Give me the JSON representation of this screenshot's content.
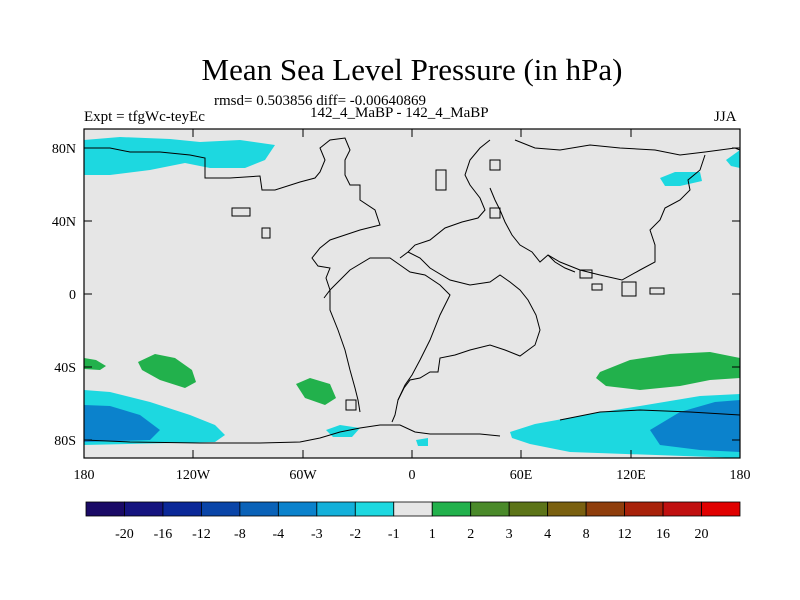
{
  "title": "Mean Sea Level Pressure (in hPa)",
  "stats": "rmsd= 0.503856 diff= -0.00640869",
  "experiment": "Expt = tfgWc-teyEc",
  "comparison": "142_4_MaBP - 142_4_MaBP",
  "season": "JJA",
  "lat_ticks": [
    "80N",
    "40N",
    "0",
    "40S",
    "80S"
  ],
  "lon_ticks": [
    "180",
    "120W",
    "60W",
    "0",
    "60E",
    "120E",
    "180"
  ],
  "colorbar": {
    "labels": [
      "-20",
      "-16",
      "-12",
      "-8",
      "-4",
      "-3",
      "-2",
      "-1",
      "1",
      "2",
      "3",
      "4",
      "8",
      "12",
      "16",
      "20"
    ],
    "colors": [
      "#1a0a66",
      "#15147f",
      "#0b2898",
      "#0a45a8",
      "#0a62b8",
      "#0b82cc",
      "#13b0da",
      "#1dd8e0",
      "#e6e6e6",
      "#22b14c",
      "#4a8a2a",
      "#5c7418",
      "#7a6010",
      "#8f3e0c",
      "#a8220a",
      "#c01010",
      "#e00000"
    ]
  }
}
